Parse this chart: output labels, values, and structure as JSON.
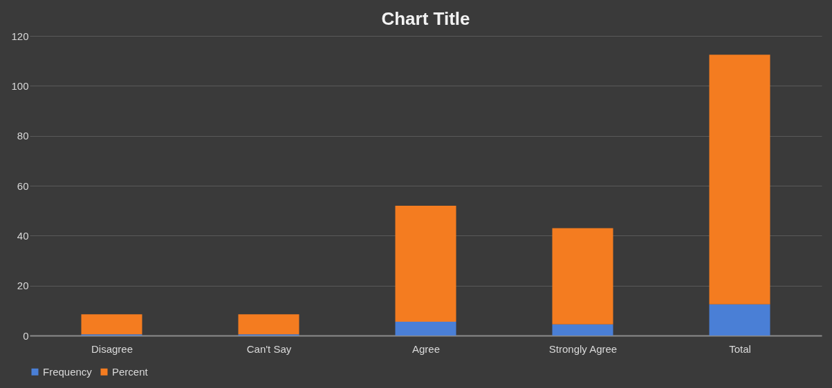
{
  "chart_data": {
    "type": "bar",
    "title": "Chart Title",
    "stacked": true,
    "categories": [
      "Disagree",
      "Can't Say",
      "Agree",
      "Strongly Agree",
      "Total"
    ],
    "series": [
      {
        "name": "Frequency",
        "color": "#4a7fd6",
        "values": [
          0.5,
          0.5,
          5.5,
          4.5,
          12.5
        ]
      },
      {
        "name": "Percent",
        "color": "#f47c20",
        "values": [
          8,
          8,
          46.5,
          38.5,
          100
        ]
      }
    ],
    "ylim": [
      0,
      120
    ],
    "yticks": [
      0,
      20,
      40,
      60,
      80,
      100,
      120
    ],
    "grid": "y",
    "legend": "bottom"
  }
}
